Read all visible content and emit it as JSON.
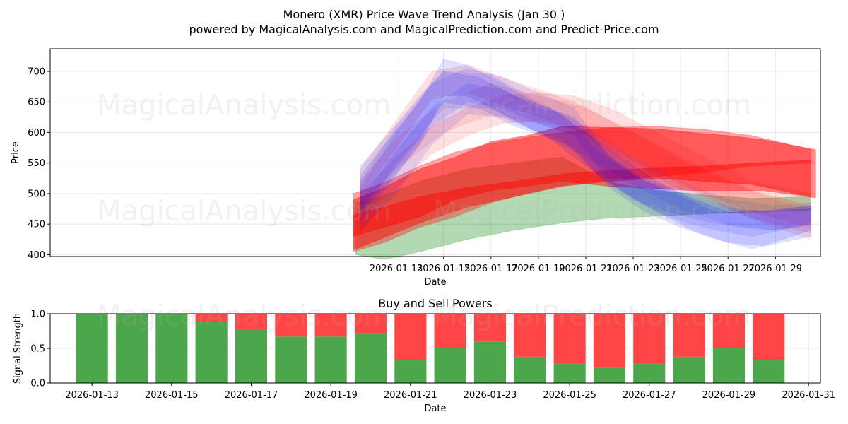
{
  "title": "Monero (XMR) Price Wave Trend Analysis (Jan 30 )",
  "subtitle": "powered by MagicalAnalysis.com and MagicalPrediction.com and Predict-Price.com",
  "watermarks": [
    "MagicalAnalysis.com",
    "MagicalPrediction.com"
  ],
  "colors": {
    "band_red": "#ff0000",
    "band_blue": "#0000ff",
    "band_green": "#008000",
    "bar_buy": "#4ca64c",
    "bar_sell": "#ff4545"
  },
  "chart_data": [
    {
      "type": "area",
      "name": "price-wave-chart",
      "xlabel": "Date",
      "ylabel": "Price",
      "xlim": [
        -1.6,
        30.9
      ],
      "ylim": [
        397,
        737
      ],
      "yticks": [
        400,
        450,
        500,
        550,
        600,
        650,
        700
      ],
      "xticks": [
        {
          "day": 13,
          "label": "2026-01-13"
        },
        {
          "day": 15,
          "label": "2026-01-15"
        },
        {
          "day": 17,
          "label": "2026-01-17"
        },
        {
          "day": 19,
          "label": "2026-01-19"
        },
        {
          "day": 21,
          "label": "2026-01-21"
        },
        {
          "day": 23,
          "label": "2026-01-23"
        },
        {
          "day": 25,
          "label": "2026-01-25"
        },
        {
          "day": 27,
          "label": "2026-01-27"
        },
        {
          "day": 29,
          "label": "2026-01-29"
        }
      ],
      "bands": [
        {
          "color": "green",
          "opacity": 0.3,
          "days": [
            11.3,
            12.5,
            14,
            16,
            18,
            20,
            22,
            24,
            26,
            28,
            30.5
          ],
          "upper": [
            485,
            497,
            520,
            540,
            550,
            560,
            518,
            505,
            498,
            492,
            495
          ],
          "lower": [
            400,
            392,
            405,
            425,
            440,
            452,
            460,
            463,
            467,
            470,
            473
          ]
        },
        {
          "color": "red",
          "opacity": 0.45,
          "days": [
            11.2,
            12.5,
            14,
            15.5,
            17,
            18.5,
            20,
            22,
            24,
            25.5,
            27,
            28.5,
            30.7
          ],
          "upper": [
            490,
            510,
            540,
            560,
            585,
            595,
            610,
            608,
            606,
            600,
            595,
            588,
            572
          ],
          "lower": [
            430,
            445,
            462,
            490,
            505,
            512,
            520,
            512,
            508,
            505,
            505,
            505,
            493
          ]
        },
        {
          "color": "red",
          "opacity": 0.35,
          "days": [
            11.2,
            12.5,
            14,
            15.5,
            17,
            18.5,
            20,
            22,
            24,
            26,
            28,
            30.5
          ],
          "upper": [
            500,
            518,
            545,
            568,
            582,
            592,
            600,
            608,
            610,
            605,
            595,
            572
          ],
          "lower": [
            405,
            420,
            445,
            462,
            485,
            500,
            513,
            523,
            528,
            535,
            545,
            550
          ]
        },
        {
          "color": "red",
          "opacity": 0.45,
          "days": [
            11.2,
            12.5,
            14,
            16,
            18,
            20,
            22,
            24,
            26,
            28,
            30.5
          ],
          "upper": [
            465,
            478,
            495,
            510,
            520,
            532,
            538,
            542,
            545,
            550,
            555
          ],
          "lower": [
            408,
            428,
            452,
            478,
            495,
            512,
            520,
            525,
            520,
            515,
            495
          ]
        },
        {
          "color": "red",
          "opacity": 0.12,
          "days": [
            11.5,
            13,
            14.5,
            16,
            17.5,
            19,
            20.5,
            22,
            24,
            26,
            28,
            30.5
          ],
          "upper": [
            500,
            560,
            610,
            640,
            660,
            665,
            660,
            640,
            600,
            560,
            520,
            500
          ],
          "lower": [
            460,
            510,
            565,
            595,
            615,
            620,
            605,
            585,
            540,
            500,
            470,
            445
          ]
        },
        {
          "color": "red",
          "opacity": 0.12,
          "days": [
            11.5,
            13,
            14.5,
            16,
            17.5,
            19,
            20.5,
            22,
            24,
            26,
            28,
            30.5
          ],
          "upper": [
            540,
            620,
            700,
            710,
            690,
            670,
            650,
            620,
            580,
            540,
            505,
            480
          ]
        },
        {
          "color": "red",
          "opacity": 0.1,
          "days": [
            11.5,
            13,
            15,
            17,
            19,
            21,
            23,
            25,
            27,
            29,
            30.5
          ],
          "upper": [
            520,
            590,
            650,
            680,
            660,
            640,
            600,
            555,
            520,
            490,
            470
          ],
          "lower": [
            470,
            540,
            600,
            630,
            615,
            590,
            550,
            505,
            475,
            445,
            425
          ]
        },
        {
          "color": "blue",
          "opacity": 0.12,
          "days": [
            11.5,
            12.5,
            14,
            15,
            16.5,
            18,
            19.5,
            21,
            22.5,
            24,
            25.5,
            27,
            28.5,
            30.5
          ],
          "upper": [
            545,
            590,
            660,
            700,
            690,
            660,
            640,
            600,
            560,
            520,
            490,
            470,
            470,
            480
          ],
          "lower": [
            480,
            520,
            590,
            650,
            640,
            610,
            590,
            545,
            505,
            470,
            440,
            420,
            415,
            440
          ]
        },
        {
          "color": "blue",
          "opacity": 0.12,
          "days": [
            11.5,
            12.5,
            14,
            15,
            16,
            17.5,
            19,
            20.5,
            22,
            23.5,
            25,
            26.5,
            28,
            30.5
          ],
          "upper": [
            530,
            580,
            650,
            720,
            710,
            680,
            645,
            625,
            560,
            520,
            495,
            470,
            470,
            475
          ],
          "lower": [
            470,
            510,
            580,
            660,
            660,
            630,
            600,
            575,
            510,
            470,
            445,
            425,
            410,
            430
          ]
        },
        {
          "color": "blue",
          "opacity": 0.1,
          "days": [
            11.5,
            13,
            14.5,
            16,
            17.5,
            19,
            20.5,
            22,
            23.5,
            25,
            26.5,
            28,
            30.5
          ],
          "upper": [
            510,
            600,
            680,
            705,
            690,
            665,
            640,
            560,
            520,
            500,
            480,
            470,
            480
          ],
          "lower": [
            455,
            530,
            610,
            650,
            640,
            615,
            595,
            520,
            480,
            455,
            440,
            430,
            450
          ]
        },
        {
          "color": "blue",
          "opacity": 0.1,
          "days": [
            11.5,
            13,
            14.5,
            16,
            17.5,
            19,
            20,
            21.5,
            23,
            24.5,
            26,
            27.5,
            29,
            30.5
          ],
          "upper": [
            490,
            570,
            640,
            680,
            670,
            640,
            630,
            570,
            530,
            510,
            490,
            475,
            470,
            475
          ],
          "lower": [
            440,
            500,
            580,
            630,
            625,
            600,
            590,
            530,
            490,
            470,
            455,
            445,
            440,
            450
          ]
        },
        {
          "color": "blue",
          "opacity": 0.08,
          "days": [
            11.5,
            13,
            15,
            17,
            19,
            21,
            23,
            25,
            27,
            29,
            30.5
          ],
          "upper": [
            520,
            610,
            700,
            695,
            650,
            610,
            560,
            520,
            490,
            480,
            485
          ],
          "lower": [
            470,
            550,
            640,
            640,
            600,
            560,
            515,
            475,
            450,
            440,
            455
          ]
        }
      ]
    },
    {
      "type": "bar",
      "name": "buy-sell-powers-chart",
      "title": "Buy and Sell Powers",
      "xlabel": "Date",
      "ylabel": "Signal Strength",
      "xlim": [
        11.95,
        31.3
      ],
      "ylim": [
        0,
        1
      ],
      "yticks": [
        0.0,
        0.5,
        1.0
      ],
      "ytick_labels": [
        "0.0",
        "0.5",
        "1.0"
      ],
      "xticks": [
        {
          "day": 13,
          "label": "2026-01-13"
        },
        {
          "day": 15,
          "label": "2026-01-15"
        },
        {
          "day": 17,
          "label": "2026-01-17"
        },
        {
          "day": 19,
          "label": "2026-01-19"
        },
        {
          "day": 21,
          "label": "2026-01-21"
        },
        {
          "day": 23,
          "label": "2026-01-23"
        },
        {
          "day": 25,
          "label": "2026-01-25"
        },
        {
          "day": 27,
          "label": "2026-01-27"
        },
        {
          "day": 29,
          "label": "2026-01-29"
        },
        {
          "day": 31,
          "label": "2026-01-31"
        }
      ],
      "days": [
        13,
        14,
        15,
        16,
        17,
        18,
        19,
        20,
        21,
        22,
        23,
        24,
        25,
        26,
        27,
        28,
        29,
        30
      ],
      "series": [
        {
          "name": "Buy",
          "values": [
            1.0,
            1.0,
            1.0,
            0.88,
            0.78,
            0.67,
            0.67,
            0.72,
            0.33,
            0.5,
            0.6,
            0.38,
            0.28,
            0.22,
            0.28,
            0.38,
            0.5,
            0.33
          ]
        },
        {
          "name": "Sell",
          "values": [
            0.0,
            0.0,
            0.0,
            0.12,
            0.22,
            0.33,
            0.33,
            0.28,
            0.67,
            0.5,
            0.4,
            0.62,
            0.72,
            0.78,
            0.72,
            0.62,
            0.5,
            0.67
          ]
        }
      ]
    }
  ]
}
